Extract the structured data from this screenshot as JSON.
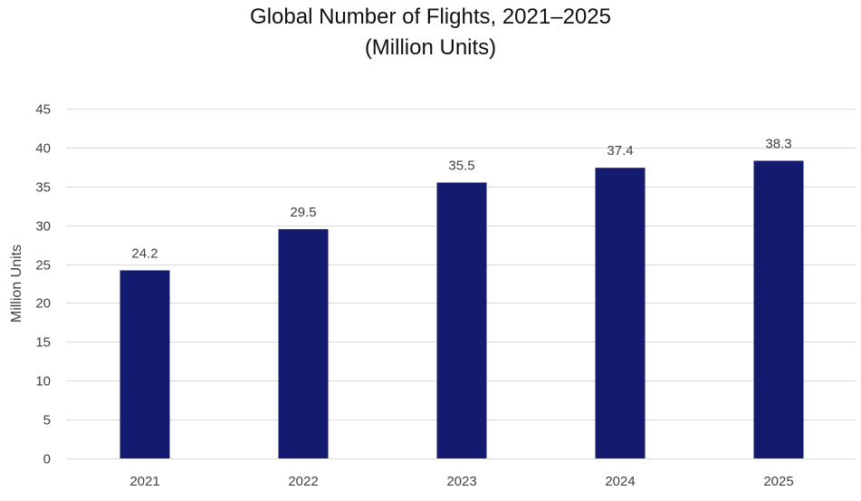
{
  "chart_data": {
    "type": "bar",
    "title_lines": [
      "Global Number of Flights, 2021–2025",
      "(Million Units)"
    ],
    "xlabel": "",
    "ylabel": "Million Units",
    "categories": [
      "2021",
      "2022",
      "2023",
      "2024",
      "2025"
    ],
    "values": [
      24.2,
      29.5,
      35.5,
      37.4,
      38.3
    ],
    "data_labels": [
      "24.2",
      "29.5",
      "35.5",
      "37.4",
      "38.3"
    ],
    "ylim": [
      0,
      45
    ],
    "yticks": [
      0,
      5,
      10,
      15,
      20,
      25,
      30,
      35,
      40,
      45
    ],
    "grid": true,
    "legend": "none",
    "bar_color": "#141a6e"
  }
}
